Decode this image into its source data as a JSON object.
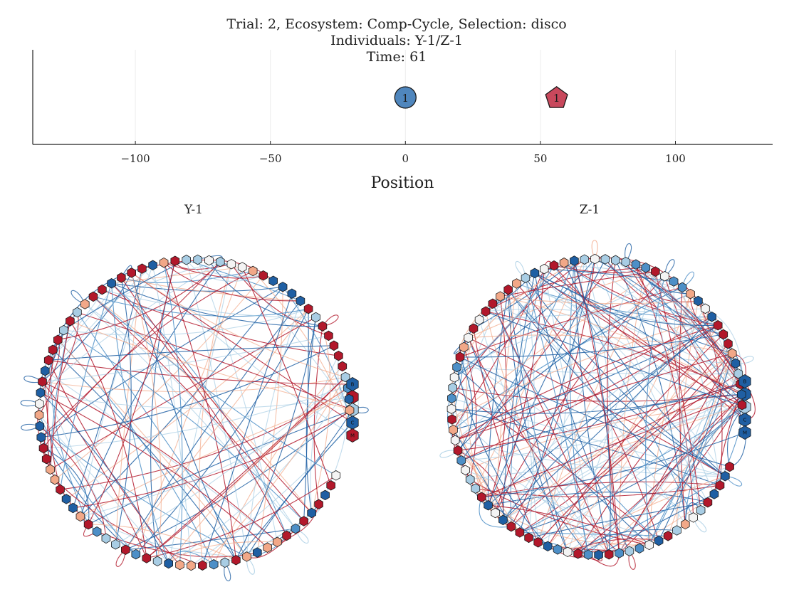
{
  "title": {
    "line1": "Trial: 2, Ecosystem: Comp-Cycle, Selection: disco",
    "line2": "Individuals: Y-1/Z-1",
    "line3": "Time: 61"
  },
  "colors": {
    "blue": "#4f86bd",
    "red": "#c8485c",
    "net_dark_blue": "#1f5fa3",
    "net_mid_blue": "#4d8fc7",
    "net_light_blue": "#a8cde4",
    "net_white": "#f4f4f4",
    "net_light_red": "#f2a888",
    "net_red": "#b2182b"
  },
  "chart_data": [
    {
      "type": "scatter",
      "xlabel": "Position",
      "xlim": [
        -138,
        136
      ],
      "xticks": [
        -100,
        -50,
        0,
        50,
        100
      ],
      "xtick_labels": [
        "−100",
        "−50",
        "0",
        "50",
        "100"
      ],
      "grid": true,
      "series": [
        {
          "marker": "circle",
          "color": "#4f86bd",
          "points": [
            {
              "x": 0,
              "label": "1"
            }
          ]
        },
        {
          "marker": "pentagon",
          "color": "#c8485c",
          "points": [
            {
              "x": 56,
              "label": "1"
            }
          ]
        }
      ]
    },
    {
      "type": "network",
      "title": "Y-1",
      "node_count": 86,
      "edge_count": 170,
      "labeled_nodes": [
        "B",
        "I",
        "D",
        "C",
        "M"
      ],
      "labeled_node_colors": [
        "#1f5fa3",
        "#b2182b",
        "#a8cde4",
        "#1f5fa3",
        "#b2182b"
      ]
    },
    {
      "type": "network",
      "title": "Z-1",
      "node_count": 88,
      "edge_count": 260,
      "labeled_nodes": [
        "B",
        "I",
        "D",
        "C",
        "M"
      ],
      "labeled_node_colors": [
        "#1f5fa3",
        "#1f5fa3",
        "#a8cde4",
        "#1f5fa3",
        "#1f5fa3"
      ]
    }
  ]
}
